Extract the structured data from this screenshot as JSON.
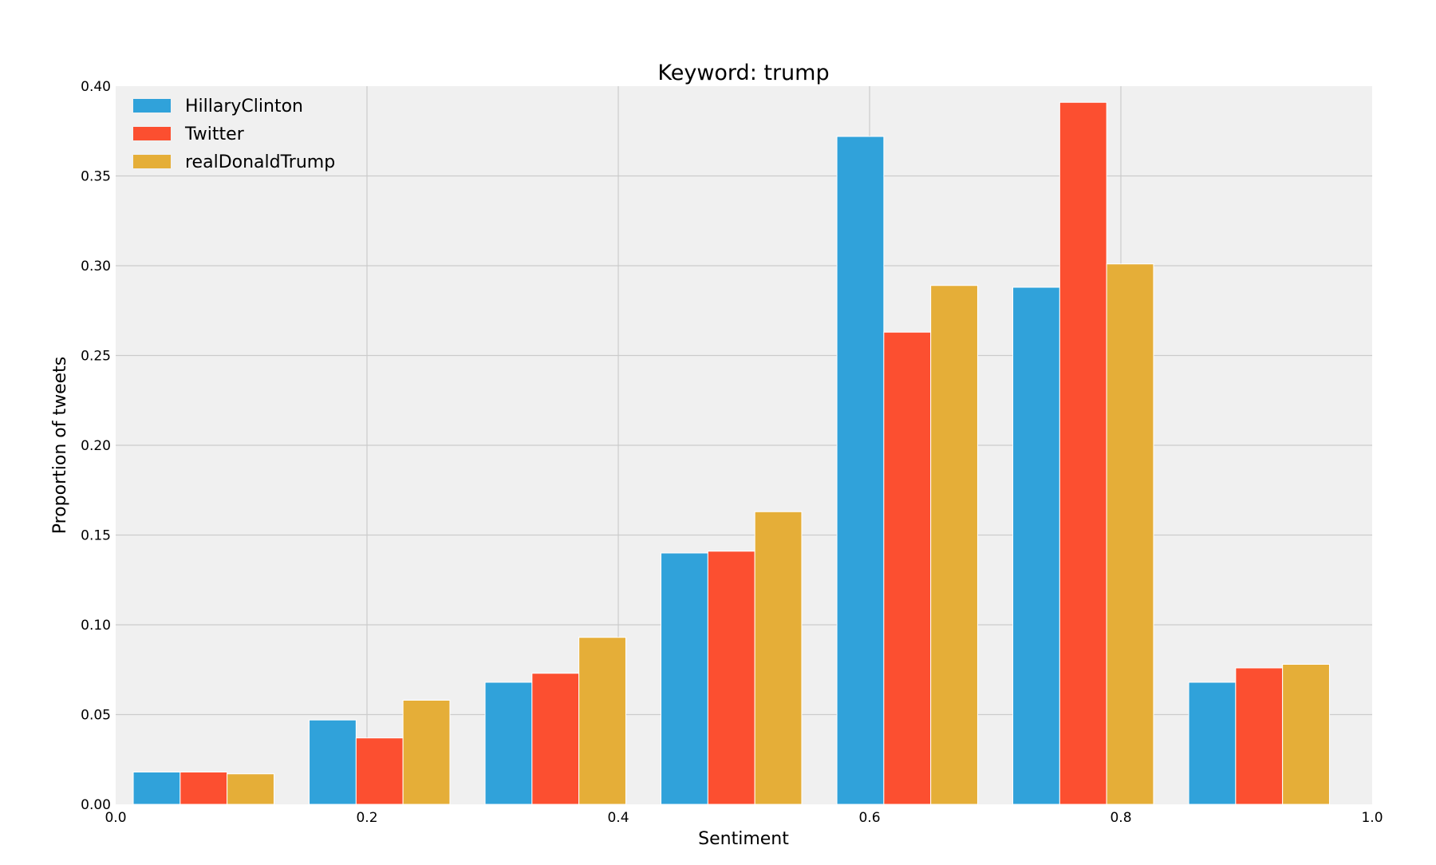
{
  "chart_data": {
    "type": "bar",
    "title": "Keyword: trump",
    "xlabel": "Sentiment",
    "ylabel": "Proportion of tweets",
    "xlim": [
      0.0,
      1.0
    ],
    "ylim": [
      0.0,
      0.4
    ],
    "x_ticks": [
      "0.0",
      "0.2",
      "0.4",
      "0.6",
      "0.8",
      "1.0"
    ],
    "y_ticks": [
      "0.00",
      "0.05",
      "0.10",
      "0.15",
      "0.20",
      "0.25",
      "0.30",
      "0.35",
      "0.40"
    ],
    "grid": true,
    "legend_position": "top-left",
    "bin_edges": [
      0.0,
      0.14,
      0.28,
      0.42,
      0.56,
      0.7,
      0.84,
      0.98
    ],
    "series": [
      {
        "name": "HillaryClinton",
        "color": "#30a2da",
        "values": [
          0.018,
          0.047,
          0.068,
          0.14,
          0.372,
          0.288,
          0.068
        ]
      },
      {
        "name": "Twitter",
        "color": "#fc4f30",
        "values": [
          0.018,
          0.037,
          0.073,
          0.141,
          0.263,
          0.391,
          0.076
        ]
      },
      {
        "name": "realDonaldTrump",
        "color": "#e5ae38",
        "values": [
          0.017,
          0.058,
          0.093,
          0.163,
          0.289,
          0.301,
          0.078
        ]
      }
    ]
  }
}
